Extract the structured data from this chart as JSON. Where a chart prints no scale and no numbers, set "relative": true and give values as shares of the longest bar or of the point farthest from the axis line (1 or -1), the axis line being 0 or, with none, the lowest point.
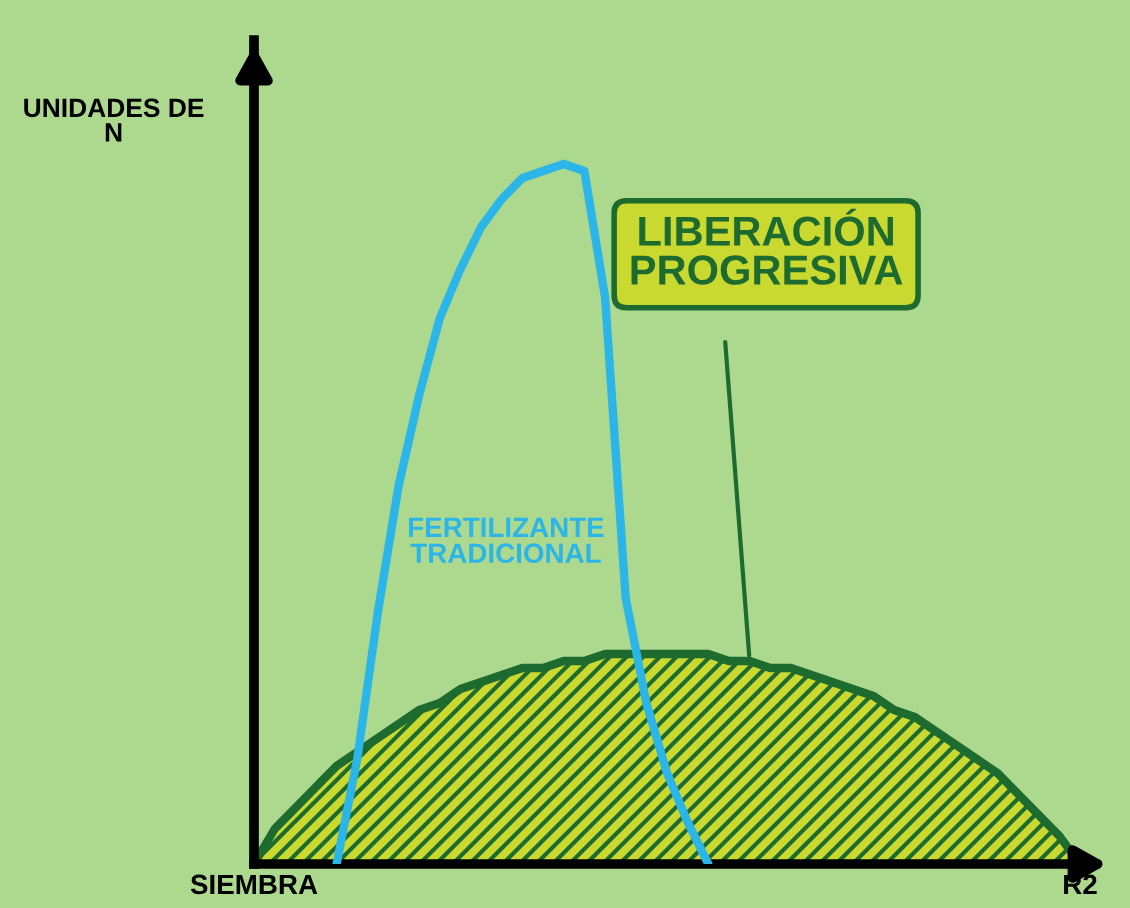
{
  "chart_data": {
    "type": "line",
    "relative": true,
    "ylabel": "UNIDADES DE N",
    "categories": [
      "SIEMBRA",
      null,
      null,
      null,
      null,
      null,
      null,
      null,
      null,
      null,
      null,
      null,
      null,
      null,
      null,
      null,
      null,
      null,
      null,
      null,
      null,
      null,
      null,
      null,
      null,
      null,
      null,
      null,
      null,
      null,
      null,
      null,
      null,
      null,
      null,
      null,
      null,
      null,
      null,
      null,
      "R2"
    ],
    "series": [
      {
        "name": "LIBERACIÓN PROGRESIVA",
        "type": "area",
        "color": "#c9d92f",
        "values": [
          0,
          0.05,
          0.08,
          0.11,
          0.14,
          0.16,
          0.18,
          0.2,
          0.22,
          0.23,
          0.25,
          0.26,
          0.27,
          0.28,
          0.28,
          0.29,
          0.29,
          0.3,
          0.3,
          0.3,
          0.3,
          0.3,
          0.3,
          0.29,
          0.29,
          0.28,
          0.28,
          0.27,
          0.26,
          0.25,
          0.24,
          0.22,
          0.21,
          0.19,
          0.17,
          0.15,
          0.13,
          0.1,
          0.07,
          0.04,
          0
        ]
      },
      {
        "name": "FERTILIZANTE TRADICIONAL",
        "color": "#2bb5e8",
        "values": [
          null,
          null,
          null,
          null,
          0,
          0.15,
          0.36,
          0.54,
          0.67,
          0.78,
          0.85,
          0.91,
          0.95,
          0.98,
          0.99,
          1.0,
          0.99,
          0.81,
          0.38,
          0.23,
          0.13,
          0.06,
          0,
          null,
          null,
          null,
          null,
          null,
          null,
          null,
          null,
          null,
          null,
          null,
          null,
          null,
          null,
          null,
          null,
          null,
          null
        ]
      }
    ],
    "line_style": "solid"
  }
}
